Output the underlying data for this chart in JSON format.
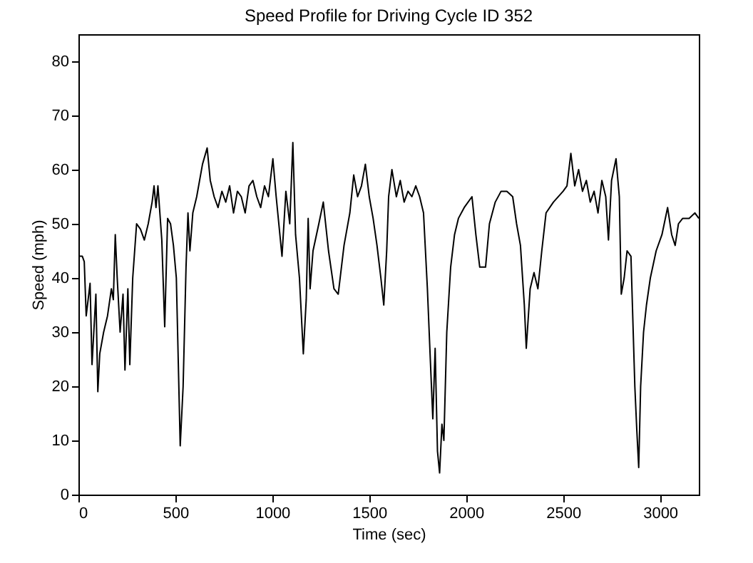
{
  "chart_data": {
    "type": "line",
    "title": "Speed Profile for Driving Cycle ID 352",
    "xlabel": "Time (sec)",
    "ylabel": "Speed (mph)",
    "xlim": [
      0,
      3200
    ],
    "ylim": [
      0,
      85
    ],
    "xticks": [
      0,
      500,
      1000,
      1500,
      2000,
      2500,
      3000
    ],
    "yticks": [
      0,
      10,
      20,
      30,
      40,
      50,
      60,
      70,
      80
    ],
    "grid": false,
    "marker": "none",
    "line_style": "solid",
    "x": [
      0,
      20,
      30,
      40,
      60,
      70,
      90,
      100,
      110,
      130,
      150,
      170,
      180,
      190,
      200,
      215,
      230,
      240,
      255,
      265,
      280,
      300,
      320,
      340,
      360,
      380,
      390,
      400,
      410,
      430,
      445,
      460,
      475,
      490,
      505,
      525,
      540,
      555,
      565,
      575,
      590,
      610,
      640,
      664,
      680,
      700,
      720,
      740,
      760,
      780,
      800,
      820,
      840,
      860,
      880,
      900,
      920,
      940,
      960,
      980,
      1003,
      1020,
      1050,
      1070,
      1090,
      1106,
      1120,
      1140,
      1160,
      1175,
      1185,
      1195,
      1210,
      1240,
      1263,
      1290,
      1318,
      1340,
      1370,
      1400,
      1420,
      1440,
      1460,
      1480,
      1500,
      1520,
      1540,
      1560,
      1575,
      1590,
      1600,
      1617,
      1640,
      1660,
      1680,
      1700,
      1720,
      1740,
      1760,
      1780,
      1800,
      1815,
      1828,
      1840,
      1852,
      1863,
      1875,
      1885,
      1900,
      1920,
      1940,
      1960,
      1990,
      2030,
      2050,
      2070,
      2100,
      2120,
      2150,
      2180,
      2210,
      2240,
      2260,
      2280,
      2300,
      2310,
      2330,
      2350,
      2370,
      2390,
      2412,
      2450,
      2500,
      2520,
      2540,
      2560,
      2580,
      2600,
      2620,
      2640,
      2660,
      2680,
      2700,
      2720,
      2734,
      2750,
      2773,
      2790,
      2800,
      2815,
      2830,
      2850,
      2870,
      2880,
      2890,
      2900,
      2915,
      2930,
      2950,
      2980,
      3010,
      3039,
      3060,
      3078,
      3095,
      3117,
      3150,
      3180,
      3200
    ],
    "series": [
      {
        "color": "#000000",
        "values": [
          44,
          44,
          43,
          33,
          39,
          24,
          37,
          19,
          26,
          30,
          33,
          38,
          36,
          48,
          40,
          30,
          37,
          23,
          38,
          24,
          40,
          50,
          49,
          47,
          50,
          54,
          57,
          53,
          57,
          47,
          31,
          51,
          50,
          46,
          40,
          9,
          20,
          42,
          52,
          45,
          52,
          55,
          61,
          64,
          58,
          55,
          53,
          56,
          54,
          57,
          52,
          56,
          55,
          52,
          57,
          58,
          55,
          53,
          57,
          55,
          62,
          55,
          44,
          56,
          50,
          65,
          48,
          40,
          26,
          36,
          51,
          38,
          45,
          50,
          54,
          45,
          38,
          37,
          46,
          52,
          59,
          55,
          57,
          61,
          55,
          51,
          46,
          40,
          35,
          45,
          55,
          60,
          55,
          58,
          54,
          56,
          55,
          57,
          55,
          52,
          38,
          25,
          14,
          27,
          8,
          4,
          13,
          10,
          30,
          42,
          48,
          51,
          53,
          55,
          48,
          42,
          42,
          50,
          54,
          56,
          56,
          55,
          50,
          46,
          35,
          27,
          38,
          41,
          38,
          45,
          52,
          54,
          56,
          57,
          63,
          57,
          60,
          56,
          58,
          54,
          56,
          52,
          58,
          55,
          47,
          58,
          62,
          55,
          37,
          40,
          45,
          44,
          20,
          12,
          5,
          20,
          30,
          35,
          40,
          45,
          48,
          53,
          48,
          46,
          50,
          51,
          51,
          52,
          51
        ]
      }
    ]
  }
}
